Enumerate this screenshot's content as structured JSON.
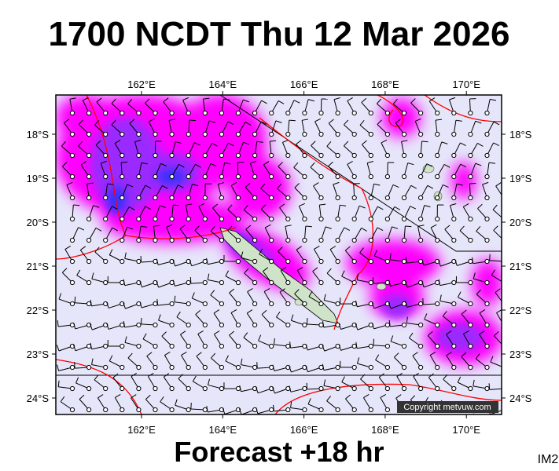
{
  "header": {
    "title": "1700 NCDT Thu 12 Mar 2026"
  },
  "map": {
    "lon_labels": [
      "162°E",
      "164°E",
      "166°E",
      "168°E",
      "170°E"
    ],
    "lat_labels": [
      "18°S",
      "19°S",
      "20°S",
      "21°S",
      "22°S",
      "23°S",
      "24°S"
    ],
    "copyright": "Copyright metvuw.com"
  },
  "footer": {
    "caption": "Forecast +18 hr",
    "code": "IM2"
  }
}
